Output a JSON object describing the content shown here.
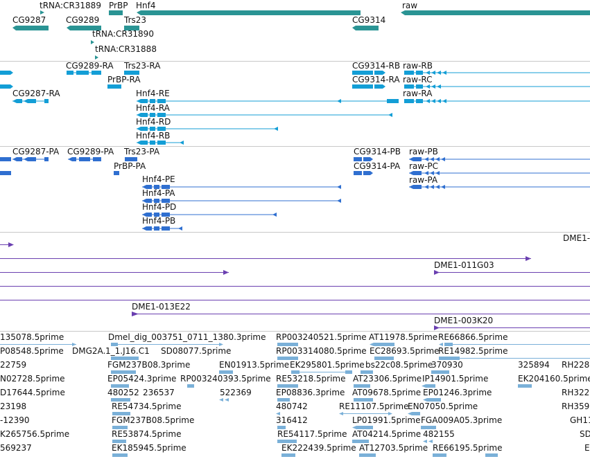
{
  "tracks": [
    {
      "name": "genes",
      "color": "#2a9494",
      "labels": [
        [
          "tRNA:CR31889",
          57,
          12
        ],
        [
          "PrBP",
          157,
          12
        ],
        [
          "Hnf4",
          196,
          12
        ],
        [
          "raw",
          580,
          12
        ],
        [
          "CG9287",
          18,
          33
        ],
        [
          "CG9289",
          95,
          33
        ],
        [
          "Trs23",
          179,
          33
        ],
        [
          "CG9314",
          508,
          33
        ],
        [
          "tRNA:CR31890",
          133,
          53
        ],
        [
          "tRNA:CR31888",
          137,
          75
        ]
      ]
    },
    {
      "name": "transcripts",
      "color": "#139ed6",
      "labels": [
        [
          "CG9289-RA",
          95,
          99
        ],
        [
          "Trs23-RA",
          179,
          99
        ],
        [
          "CG9314-RB",
          508,
          99
        ],
        [
          "raw-RB",
          581,
          99
        ],
        [
          "PrBP-RA",
          155,
          119
        ],
        [
          "CG9314-RA",
          508,
          119
        ],
        [
          "raw-RC",
          581,
          119
        ],
        [
          "CG9287-RA",
          18,
          139
        ],
        [
          "Hnf4-RE",
          196,
          139
        ],
        [
          "raw-RA",
          581,
          139
        ],
        [
          "Hnf4-RA",
          196,
          160
        ],
        [
          "Hnf4-RD",
          196,
          180
        ],
        [
          "Hnf4-RB",
          196,
          200
        ]
      ]
    },
    {
      "name": "proteins",
      "color": "#2f6fd0",
      "labels": [
        [
          "CG9287-PA",
          18,
          223
        ],
        [
          "CG9289-PA",
          97,
          223
        ],
        [
          "Trs23-PA",
          179,
          223
        ],
        [
          "CG9314-PB",
          510,
          223
        ],
        [
          "raw-PB",
          590,
          223
        ],
        [
          "PrBP-PA",
          164,
          244
        ],
        [
          "CG9314-PA",
          510,
          244
        ],
        [
          "raw-PC",
          590,
          244
        ],
        [
          "raw-PA",
          590,
          264
        ],
        [
          "Hnf4-PE",
          205,
          263
        ],
        [
          "Hnf4-PA",
          205,
          283
        ],
        [
          "Hnf4-PD",
          205,
          303
        ],
        [
          "Hnf4-PB",
          205,
          323
        ]
      ]
    },
    {
      "name": "bac-clones",
      "color": "#6a3fb0",
      "labels": [
        [
          "DME1-",
          812,
          348
        ],
        [
          "DME1-011G03",
          626,
          387
        ],
        [
          "DME1-013E22",
          190,
          447
        ],
        [
          "DME1-003K20",
          626,
          467
        ]
      ]
    },
    {
      "name": "ests",
      "color": "#7ab0d8",
      "labels": [
        [
          "135078.5prime",
          0,
          491
        ],
        [
          "Dmel_dig_003751_0711_1380.3prime",
          156,
          491
        ],
        [
          "RP003240521.5prime",
          398,
          491
        ],
        [
          "AT11978.5prime",
          532,
          491
        ],
        [
          "RE66866.5prime",
          632,
          491
        ],
        [
          "P08548.5prime",
          0,
          511
        ],
        [
          "DMG2A.",
          104,
          511
        ],
        [
          "1_1.J16.C1",
          152,
          511
        ],
        [
          "SD08077.5prime",
          232,
          511
        ],
        [
          "RP003314080.5prime",
          398,
          511
        ],
        [
          "EC28693.5prime",
          533,
          511
        ],
        [
          "RE14982.5prime",
          632,
          511
        ],
        [
          "22759",
          0,
          531
        ],
        [
          "FGM237B08.3prime",
          155,
          531
        ],
        [
          "EN01913.5prime",
          316,
          531
        ],
        [
          "EK295801.5prime",
          418,
          531
        ],
        [
          "bs22c08.5prime",
          527,
          531
        ],
        [
          "370930",
          622,
          531
        ],
        [
          "325894",
          747,
          531
        ],
        [
          "RH228",
          810,
          531
        ],
        [
          "N02728.5prime",
          0,
          551
        ],
        [
          "EP05424.3prime",
          155,
          551
        ],
        [
          "RP003240393.5prime",
          260,
          551
        ],
        [
          "RE53218.5prime",
          398,
          551
        ],
        [
          "AT23306.5prime",
          509,
          551
        ],
        [
          "IP14901.5prime",
          609,
          551
        ],
        [
          "EK204160.5prime",
          747,
          551
        ],
        [
          "D17644.5prime",
          0,
          571
        ],
        [
          "480252",
          155,
          571
        ],
        [
          "236537",
          206,
          571
        ],
        [
          "522369",
          317,
          571
        ],
        [
          "EP08836.3prime",
          398,
          571
        ],
        [
          "AT09678.5prime",
          508,
          571
        ],
        [
          "EP01246.3prime",
          610,
          571
        ],
        [
          "RH322",
          810,
          571
        ],
        [
          "23198",
          0,
          591
        ],
        [
          "RE54734.5prime",
          161,
          591
        ],
        [
          "480742",
          398,
          591
        ],
        [
          "RE11107.5prime",
          489,
          591
        ],
        [
          "EN07050.5prime",
          588,
          591
        ],
        [
          "RH359",
          810,
          591
        ],
        [
          "-12390",
          0,
          611
        ],
        [
          "FGM237B08.5prime",
          161,
          611
        ],
        [
          "316412",
          398,
          611
        ],
        [
          "LP01991.5prime",
          508,
          611
        ],
        [
          "FGA009A05.3prime",
          607,
          611
        ],
        [
          "GH11",
          822,
          611
        ],
        [
          "K265756.5prime",
          0,
          631
        ],
        [
          "RE53874.5prime",
          161,
          631
        ],
        [
          "RE54117.5prime",
          400,
          631
        ],
        [
          "AT04214.5prime",
          508,
          631
        ],
        [
          "482155",
          610,
          631
        ],
        [
          "SD",
          836,
          631
        ],
        [
          "569237",
          0,
          651
        ],
        [
          "EK185945.5prime",
          161,
          651
        ],
        [
          "EK222439.5prime",
          406,
          651
        ],
        [
          "AT12703.5prime",
          518,
          651
        ],
        [
          "RE66195.5prime",
          624,
          651
        ],
        [
          "E",
          843,
          651
        ]
      ]
    }
  ]
}
